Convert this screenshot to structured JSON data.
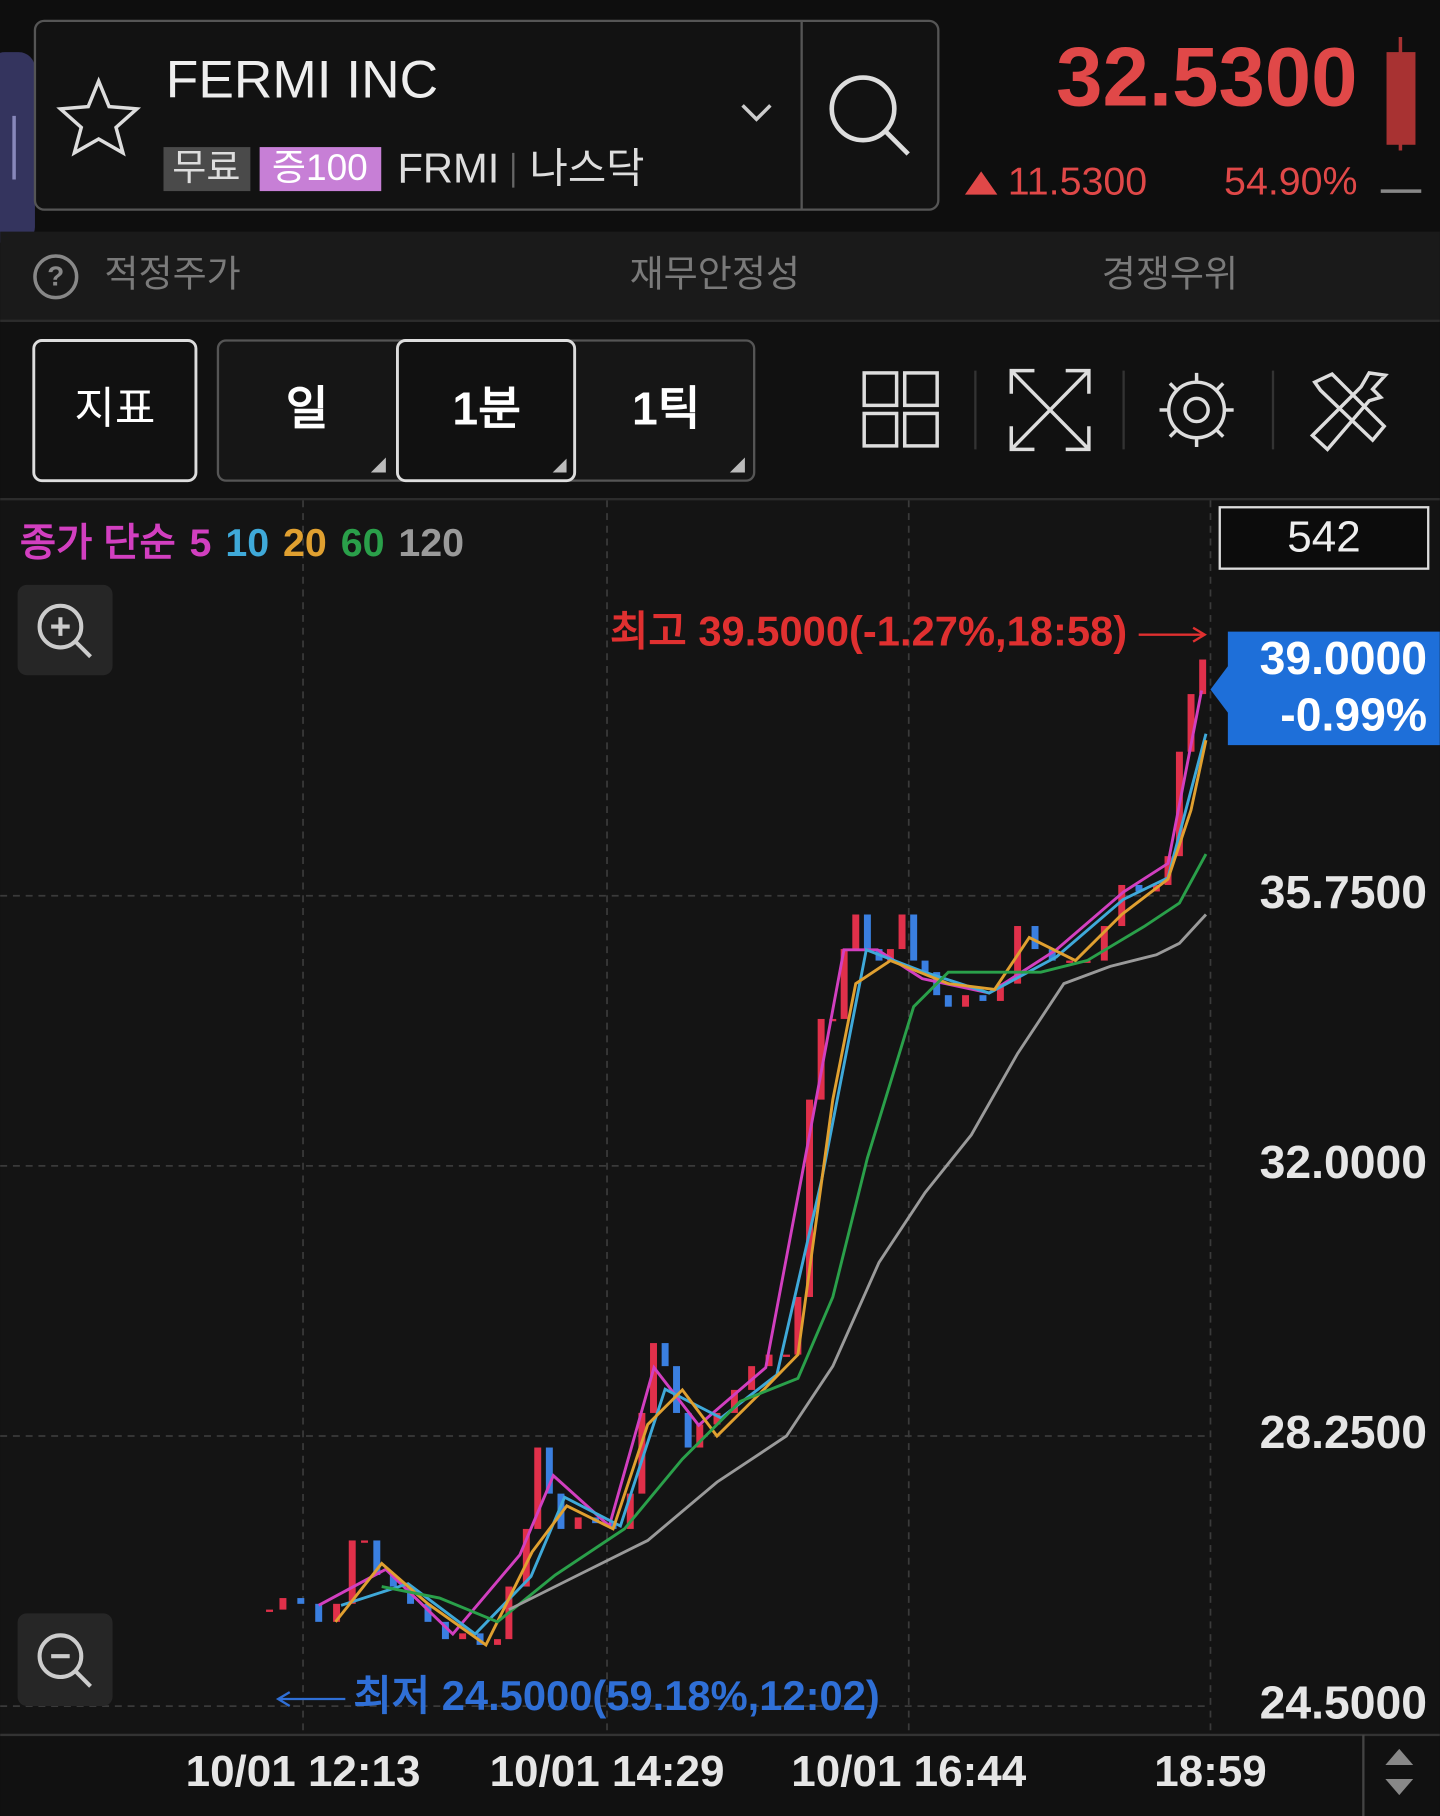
{
  "header": {
    "name": "FERMI INC",
    "badges": [
      "무료",
      "증100"
    ],
    "ticker": "FRMI",
    "exchange": "나스닥",
    "price": "32.5300",
    "change": "11.5300",
    "change_pct": "54.90%"
  },
  "help_icon": "?",
  "tabs": [
    "적정주가",
    "재무안정성",
    "경쟁우위"
  ],
  "toolbar": [
    "지표",
    "일",
    "1분",
    "1틱"
  ],
  "chart_data": {
    "type": "candlestick",
    "legend_title": "종가 단순",
    "bar_count": 542,
    "high_label": "최고 39.5000(-1.27%,18:58)",
    "low_label": "최저 24.5000(59.18%,12:02)",
    "last": {
      "value": 39,
      "label": "39.0000"
    },
    "last_change": "-0.99%",
    "xlim": [
      597.5,
      1139
    ],
    "xticks": [
      {
        "value": 733,
        "label": "10/01 12:13"
      },
      {
        "value": 869,
        "label": "10/01 14:29"
      },
      {
        "value": 1004,
        "label": "10/01 16:44"
      },
      {
        "value": 1139,
        "label": "18:59"
      }
    ],
    "ylim": [
      24.1,
      41.24
    ],
    "yticks": [
      {
        "value": 24.5,
        "label": "24.5000"
      },
      {
        "value": 28.25,
        "label": "28.2500"
      },
      {
        "value": 32,
        "label": "32.0000"
      },
      {
        "value": 35.75,
        "label": "35.7500"
      }
    ],
    "grid": true,
    "up_color": "#e0304a",
    "down_color": "#3a7fe0",
    "price": {
      "x": [
        718,
        724,
        732,
        740,
        748,
        755,
        760.5,
        766,
        773.4,
        781.1,
        788.9,
        796.7,
        804.4,
        812.2,
        820,
        825.1,
        832.9,
        838,
        843.2,
        848.4,
        856.1,
        863.9,
        871.7,
        879.4,
        884.6,
        889.8,
        895,
        900.1,
        905.3,
        910.5,
        918.2,
        926,
        933.7,
        941.5,
        949.3,
        954.4,
        959.6,
        964.8,
        970,
        975.1,
        980.3,
        985.5,
        990.7,
        995.8,
        1001,
        1006.2,
        1011.3,
        1016.5,
        1021.7,
        1029.4,
        1037.2,
        1045,
        1052.7,
        1060.5,
        1068.2,
        1076,
        1083.8,
        1091.5,
        1099.3,
        1107,
        1114.8,
        1120,
        1125.1,
        1130.3,
        1135.5
      ],
      "values": [
        25.84,
        26.0,
        25.92,
        25.67,
        25.92,
        26.8,
        26.8,
        26.32,
        26.16,
        25.92,
        25.67,
        25.43,
        25.51,
        25.35,
        25.43,
        26.16,
        26.96,
        28.09,
        27.45,
        26.96,
        27.12,
        27.04,
        26.96,
        27.45,
        28.57,
        29.54,
        29.22,
        28.57,
        28.09,
        28.41,
        28.57,
        28.89,
        29.22,
        29.38,
        29.38,
        30.18,
        32.92,
        34.04,
        34.04,
        35.01,
        35.49,
        35.01,
        34.85,
        35.01,
        35.49,
        34.85,
        34.69,
        34.37,
        34.21,
        34.37,
        34.29,
        34.53,
        35.33,
        35.01,
        34.85,
        34.85,
        34.85,
        35.33,
        35.9,
        35.81,
        35.9,
        36.3,
        37.75,
        38.55,
        39.03
      ]
    },
    "series": [
      {
        "name": "5",
        "color": "#d23fc0",
        "x": [
          740,
          770,
          800,
          830,
          845,
          870,
          890,
          910,
          940,
          960,
          975,
          990,
          1010,
          1040,
          1070,
          1100,
          1120,
          1135
        ],
        "values": [
          25.9,
          26.4,
          25.5,
          26.6,
          27.7,
          27.0,
          29.2,
          28.4,
          29.2,
          32.5,
          35.0,
          35.0,
          34.6,
          34.4,
          35.0,
          35.8,
          36.2,
          38.6
        ]
      },
      {
        "name": "10",
        "color": "#3fa9d9",
        "x": [
          750,
          780,
          810,
          835,
          850,
          875,
          895,
          920,
          945,
          965,
          985,
          1010,
          1040,
          1070,
          1100,
          1120,
          1137
        ],
        "values": [
          25.9,
          26.2,
          25.5,
          26.3,
          27.4,
          27.0,
          28.9,
          28.5,
          29.1,
          31.8,
          35.0,
          34.7,
          34.4,
          34.9,
          35.7,
          36.0,
          38.0
        ]
      },
      {
        "name": "20",
        "color": "#e0a030",
        "x": [
          747.5,
          768.2,
          788.9,
          814.8,
          835.5,
          851,
          871.7,
          887.2,
          902.7,
          918.2,
          939,
          954.4,
          970,
          980.3,
          995.8,
          1021.7,
          1042.4,
          1057.9,
          1078.6,
          1099.3,
          1120,
          1130.3,
          1137
        ],
        "values": [
          25.67,
          26.48,
          25.92,
          25.35,
          26.64,
          27.28,
          26.96,
          28.41,
          28.89,
          28.25,
          28.89,
          29.38,
          32.92,
          34.53,
          34.85,
          34.53,
          34.45,
          35.17,
          34.85,
          35.49,
          35.98,
          36.94,
          37.91
        ]
      },
      {
        "name": "60",
        "color": "#2aa04a",
        "x": [
          768.2,
          794.1,
          820,
          845.8,
          876.8,
          902.7,
          928.6,
          954.4,
          970,
          985.5,
          1006.2,
          1021.7,
          1042.4,
          1063.1,
          1083.8,
          1109.6,
          1125.1,
          1137
        ],
        "values": [
          26.16,
          26.0,
          25.67,
          26.32,
          26.96,
          27.93,
          28.73,
          29.05,
          30.18,
          32.11,
          34.21,
          34.69,
          34.69,
          34.69,
          34.85,
          35.33,
          35.65,
          36.33
        ]
      },
      {
        "name": "120",
        "color": "#9a9a9a",
        "x": [
          825.1,
          856.1,
          887.2,
          918.2,
          949.3,
          970,
          990.7,
          1011.3,
          1032,
          1052.7,
          1073.4,
          1094.1,
          1114.8,
          1125.1,
          1137
        ],
        "values": [
          25.84,
          26.32,
          26.8,
          27.61,
          28.25,
          29.22,
          30.66,
          31.63,
          32.43,
          33.56,
          34.53,
          34.77,
          34.93,
          35.09,
          35.49
        ]
      }
    ]
  }
}
